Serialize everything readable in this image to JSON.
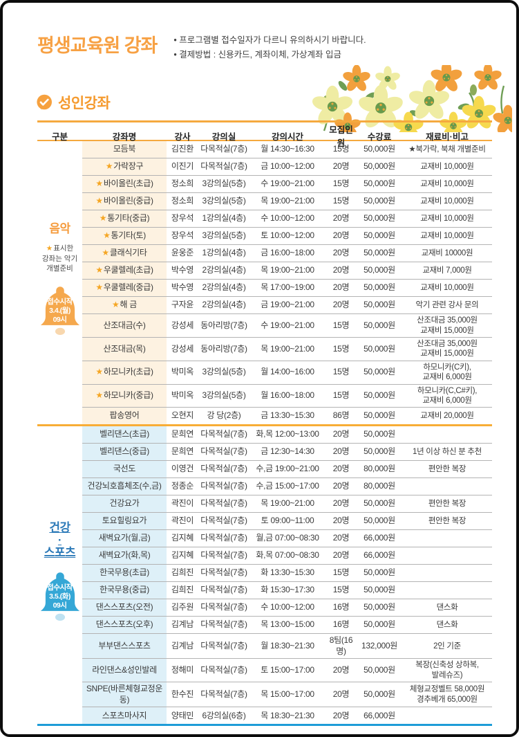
{
  "header": {
    "title": "평생교육원 강좌",
    "notes": [
      "• 프로그램별 접수일자가 다르니 유의하시기 바랍니다.",
      "• 결제방법 : 신용카드, 계좌이체, 가상계좌 입금"
    ]
  },
  "section_title": "성인강좌",
  "colors": {
    "title_orange": "#f7a144",
    "table_line_orange": "#f5a93f",
    "section_divider_orange": "#f8ad36",
    "bottom_line_blue": "#1e9cd7",
    "star_orange": "#f5a623"
  },
  "table": {
    "columns": [
      "구분",
      "강좌명",
      "강사",
      "강의실",
      "강의시간",
      "모집인원",
      "수강료",
      "재료비·비고"
    ],
    "sections": [
      {
        "name": "음악",
        "accent": "#f59b3c",
        "bell_fill": "#f5a84d",
        "bell_clapper": "#f8d7ae",
        "tint": "#fdf2e1",
        "underline": false,
        "note_star": "★",
        "note": "표시한\n강좌는 악기\n개별준비",
        "bell": {
          "line1": "접수시작",
          "line2": "3.4.(월)",
          "line3": "09시"
        },
        "rows": [
          {
            "star": false,
            "name": "모듬북",
            "teacher": "김진환",
            "room": "다목적실(7층)",
            "time": "월 14:30~16:30",
            "cap": "15명",
            "fee": "50,000원",
            "remark": "★북가락, 북채 개별준비"
          },
          {
            "star": true,
            "name": "가락장구",
            "teacher": "이진기",
            "room": "다목적실(7층)",
            "time": "금 10:00~12:00",
            "cap": "20명",
            "fee": "50,000원",
            "remark": "교재비 10,000원"
          },
          {
            "star": true,
            "name": "바이올린(초급)",
            "teacher": "정소희",
            "room": "3강의실(5층)",
            "time": "수 19:00~21:00",
            "cap": "15명",
            "fee": "50,000원",
            "remark": "교재비 10,000원"
          },
          {
            "star": true,
            "name": "바이올린(중급)",
            "teacher": "정소희",
            "room": "3강의실(5층)",
            "time": "목 19:00~21:00",
            "cap": "15명",
            "fee": "50,000원",
            "remark": "교재비 10,000원"
          },
          {
            "star": true,
            "name": "통기타(중급)",
            "teacher": "장우석",
            "room": "1강의실(4층)",
            "time": "수 10:00~12:00",
            "cap": "20명",
            "fee": "50,000원",
            "remark": "교재비 10,000원"
          },
          {
            "star": true,
            "name": "통기타(토)",
            "teacher": "장우석",
            "room": "3강의실(5층)",
            "time": "토 10:00~12:00",
            "cap": "20명",
            "fee": "50,000원",
            "remark": "교재비 10,000원"
          },
          {
            "star": true,
            "name": "클래식기타",
            "teacher": "윤웅준",
            "room": "1강의실(4층)",
            "time": "금 16:00~18:00",
            "cap": "20명",
            "fee": "50,000원",
            "remark": "교재비 10000원"
          },
          {
            "star": true,
            "name": "우쿨렐레(초급)",
            "teacher": "박수영",
            "room": "2강의실(4층)",
            "time": "목 19:00~21:00",
            "cap": "20명",
            "fee": "50,000원",
            "remark": "교재비 7,000원"
          },
          {
            "star": true,
            "name": "우쿨렐레(중급)",
            "teacher": "박수영",
            "room": "2강의실(4층)",
            "time": "목 17:00~19:00",
            "cap": "20명",
            "fee": "50,000원",
            "remark": "교재비 10,000원"
          },
          {
            "star": true,
            "name": "해 금",
            "teacher": "구자윤",
            "room": "2강의실(4층)",
            "time": "금 19:00~21:00",
            "cap": "20명",
            "fee": "50,000원",
            "remark": "악기 관련 강사 문의"
          },
          {
            "star": false,
            "name": "산조대금(수)",
            "teacher": "강성세",
            "room": "동아리방(7층)",
            "time": "수 19:00~21:00",
            "cap": "15명",
            "fee": "50,000원",
            "remark": "산조대금 35,000원\n교재비 15,000원"
          },
          {
            "star": false,
            "name": "산조대금(목)",
            "teacher": "강성세",
            "room": "동아리방(7층)",
            "time": "목 19:00~21:00",
            "cap": "15명",
            "fee": "50,000원",
            "remark": "산조대금 35,000원\n교재비 15,000원"
          },
          {
            "star": true,
            "name": "하모니카(초급)",
            "teacher": "박미옥",
            "room": "3강의실(5층)",
            "time": "월 14:00~16:00",
            "cap": "15명",
            "fee": "50,000원",
            "remark": "하모니카(C키),\n교재비 6,000원"
          },
          {
            "star": true,
            "name": "하모니카(중급)",
            "teacher": "박미옥",
            "room": "3강의실(5층)",
            "time": "월 16:00~18:00",
            "cap": "15명",
            "fee": "50,000원",
            "remark": "하모니카(C,C#키),\n교재비 6,000원"
          },
          {
            "star": false,
            "name": "팝송영어",
            "teacher": "오현지",
            "room": "강 당(2층)",
            "time": "금 13:30~15:30",
            "cap": "86명",
            "fee": "50,000원",
            "remark": "교재비 20,000원"
          }
        ]
      },
      {
        "name": "건강\n·\n스포츠",
        "accent": "#2d7ab8",
        "bell_fill": "#35a7d6",
        "bell_clapper": "#bfe2f2",
        "tint": "#def0f8",
        "underline": true,
        "note_star": "",
        "note": "",
        "bell": {
          "line1": "접수시작",
          "line2": "3.5.(화)",
          "line3": "09시"
        },
        "rows": [
          {
            "star": false,
            "name": "벨리댄스(초급)",
            "teacher": "문희연",
            "room": "다목적실(7층)",
            "time": "화,목 12:00~13:00",
            "cap": "20명",
            "fee": "50,000원",
            "remark": ""
          },
          {
            "star": false,
            "name": "벨리댄스(중급)",
            "teacher": "문희연",
            "room": "다목적실(7층)",
            "time": "금 12:30~14:30",
            "cap": "20명",
            "fee": "50,000원",
            "remark": "1년 이상 하신 분 추천"
          },
          {
            "star": false,
            "name": "국선도",
            "teacher": "이영건",
            "room": "다목적실(7층)",
            "time": "수,금 19:00~21:00",
            "cap": "20명",
            "fee": "80,000원",
            "remark": "편안한 복장"
          },
          {
            "star": false,
            "name": "건강뇌호흡체조(수,금)",
            "teacher": "정종순",
            "room": "다목적실(7층)",
            "time": "수,금 15:00~17:00",
            "cap": "20명",
            "fee": "80,000원",
            "remark": ""
          },
          {
            "star": false,
            "name": "건강요가",
            "teacher": "곽진이",
            "room": "다목적실(7층)",
            "time": "목 19:00~21:00",
            "cap": "20명",
            "fee": "50,000원",
            "remark": "편안한 복장"
          },
          {
            "star": false,
            "name": "토요힐링요가",
            "teacher": "곽진이",
            "room": "다목적실(7층)",
            "time": "토 09:00~11:00",
            "cap": "20명",
            "fee": "50,000원",
            "remark": "편안한 복장"
          },
          {
            "star": false,
            "name": "새벽요가(월,금)",
            "teacher": "김지혜",
            "room": "다목적실(7층)",
            "time": "월,금 07:00~08:30",
            "cap": "20명",
            "fee": "66,000원",
            "remark": ""
          },
          {
            "star": false,
            "name": "새벽요가(화,목)",
            "teacher": "김지혜",
            "room": "다목적실(7층)",
            "time": "화,목 07:00~08:30",
            "cap": "20명",
            "fee": "66,000원",
            "remark": ""
          },
          {
            "star": false,
            "name": "한국무용(초급)",
            "teacher": "김희진",
            "room": "다목적실(7층)",
            "time": "화 13:30~15:30",
            "cap": "15명",
            "fee": "50,000원",
            "remark": ""
          },
          {
            "star": false,
            "name": "한국무용(중급)",
            "teacher": "김희진",
            "room": "다목적실(7층)",
            "time": "화 15:30~17:30",
            "cap": "15명",
            "fee": "50,000원",
            "remark": ""
          },
          {
            "star": false,
            "name": "댄스스포츠(오전)",
            "teacher": "김주원",
            "room": "다목적실(7층)",
            "time": "수 10:00~12:00",
            "cap": "16명",
            "fee": "50,000원",
            "remark": "댄스화"
          },
          {
            "star": false,
            "name": "댄스스포츠(오후)",
            "teacher": "김계남",
            "room": "다목적실(7층)",
            "time": "목 13:00~15:00",
            "cap": "16명",
            "fee": "50,000원",
            "remark": "댄스화"
          },
          {
            "star": false,
            "name": "부부댄스스포츠",
            "teacher": "김계남",
            "room": "다목적실(7층)",
            "time": "월 18:30~21:30",
            "cap": "8팀(16명)",
            "fee": "132,000원",
            "remark": "2인 기준"
          },
          {
            "star": false,
            "name": "라인댄스&성인발레",
            "teacher": "정해미",
            "room": "다목적실(7층)",
            "time": "토 15:00~17:00",
            "cap": "20명",
            "fee": "50,000원",
            "remark": "복장(신축성 상하복,\n발레슈즈)"
          },
          {
            "star": false,
            "name": "SNPE(바른체형교정운동)",
            "teacher": "한수진",
            "room": "다목적실(7층)",
            "time": "목 15:00~17:00",
            "cap": "20명",
            "fee": "50,000원",
            "remark": "체형교정벨트 58,000원\n경추베개 65,000원"
          },
          {
            "star": false,
            "name": "스포츠마사지",
            "teacher": "양태민",
            "room": "6강의실(6층)",
            "time": "목 18:30~21:30",
            "cap": "20명",
            "fee": "66,000원",
            "remark": ""
          }
        ]
      }
    ]
  }
}
